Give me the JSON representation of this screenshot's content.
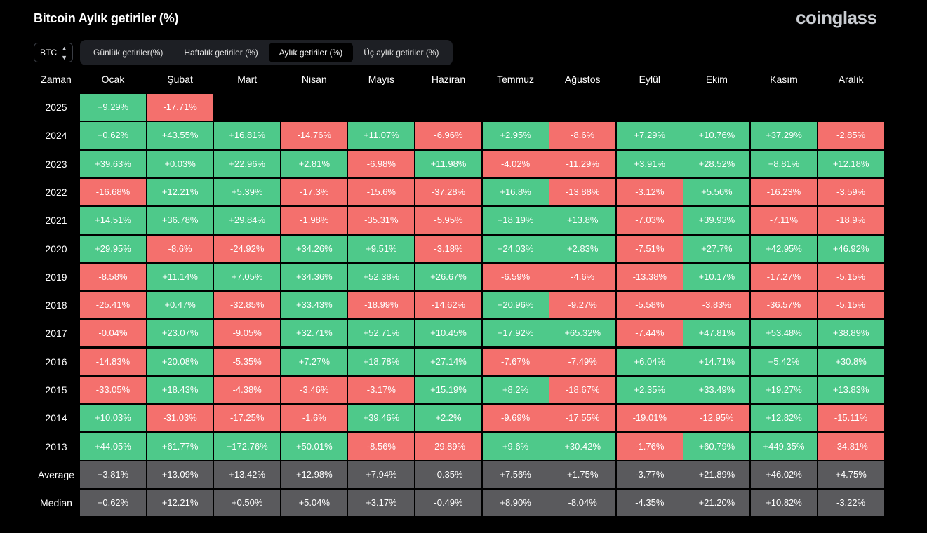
{
  "header": {
    "title": "Bitcoin Aylık getiriler (%)",
    "logo": "coinglass"
  },
  "coin_select": {
    "value": "BTC",
    "icon": "up-down-chevron-icon"
  },
  "tabs": [
    {
      "label": "Günlük getiriler(%)",
      "active": false
    },
    {
      "label": "Haftalık getiriler (%)",
      "active": false
    },
    {
      "label": "Aylık getiriler (%)",
      "active": true
    },
    {
      "label": "Üç aylık getiriler (%)",
      "active": false
    }
  ],
  "table": {
    "corner_label": "Zaman",
    "months": [
      "Ocak",
      "Şubat",
      "Mart",
      "Nisan",
      "Mayıs",
      "Haziran",
      "Temmuz",
      "Ağustos",
      "Eylül",
      "Ekim",
      "Kasım",
      "Aralık"
    ],
    "rows": [
      {
        "label": "2025",
        "values": [
          "+9.29%",
          "-17.71%"
        ]
      },
      {
        "label": "2024",
        "values": [
          "+0.62%",
          "+43.55%",
          "+16.81%",
          "-14.76%",
          "+11.07%",
          "-6.96%",
          "+2.95%",
          "-8.6%",
          "+7.29%",
          "+10.76%",
          "+37.29%",
          "-2.85%"
        ]
      },
      {
        "label": "2023",
        "values": [
          "+39.63%",
          "+0.03%",
          "+22.96%",
          "+2.81%",
          "-6.98%",
          "+11.98%",
          "-4.02%",
          "-11.29%",
          "+3.91%",
          "+28.52%",
          "+8.81%",
          "+12.18%"
        ]
      },
      {
        "label": "2022",
        "values": [
          "-16.68%",
          "+12.21%",
          "+5.39%",
          "-17.3%",
          "-15.6%",
          "-37.28%",
          "+16.8%",
          "-13.88%",
          "-3.12%",
          "+5.56%",
          "-16.23%",
          "-3.59%"
        ]
      },
      {
        "label": "2021",
        "values": [
          "+14.51%",
          "+36.78%",
          "+29.84%",
          "-1.98%",
          "-35.31%",
          "-5.95%",
          "+18.19%",
          "+13.8%",
          "-7.03%",
          "+39.93%",
          "-7.11%",
          "-18.9%"
        ]
      },
      {
        "label": "2020",
        "values": [
          "+29.95%",
          "-8.6%",
          "-24.92%",
          "+34.26%",
          "+9.51%",
          "-3.18%",
          "+24.03%",
          "+2.83%",
          "-7.51%",
          "+27.7%",
          "+42.95%",
          "+46.92%"
        ]
      },
      {
        "label": "2019",
        "values": [
          "-8.58%",
          "+11.14%",
          "+7.05%",
          "+34.36%",
          "+52.38%",
          "+26.67%",
          "-6.59%",
          "-4.6%",
          "-13.38%",
          "+10.17%",
          "-17.27%",
          "-5.15%"
        ]
      },
      {
        "label": "2018",
        "values": [
          "-25.41%",
          "+0.47%",
          "-32.85%",
          "+33.43%",
          "-18.99%",
          "-14.62%",
          "+20.96%",
          "-9.27%",
          "-5.58%",
          "-3.83%",
          "-36.57%",
          "-5.15%"
        ]
      },
      {
        "label": "2017",
        "values": [
          "-0.04%",
          "+23.07%",
          "-9.05%",
          "+32.71%",
          "+52.71%",
          "+10.45%",
          "+17.92%",
          "+65.32%",
          "-7.44%",
          "+47.81%",
          "+53.48%",
          "+38.89%"
        ]
      },
      {
        "label": "2016",
        "values": [
          "-14.83%",
          "+20.08%",
          "-5.35%",
          "+7.27%",
          "+18.78%",
          "+27.14%",
          "-7.67%",
          "-7.49%",
          "+6.04%",
          "+14.71%",
          "+5.42%",
          "+30.8%"
        ]
      },
      {
        "label": "2015",
        "values": [
          "-33.05%",
          "+18.43%",
          "-4.38%",
          "-3.46%",
          "-3.17%",
          "+15.19%",
          "+8.2%",
          "-18.67%",
          "+2.35%",
          "+33.49%",
          "+19.27%",
          "+13.83%"
        ]
      },
      {
        "label": "2014",
        "values": [
          "+10.03%",
          "-31.03%",
          "-17.25%",
          "-1.6%",
          "+39.46%",
          "+2.2%",
          "-9.69%",
          "-17.55%",
          "-19.01%",
          "-12.95%",
          "+12.82%",
          "-15.11%"
        ]
      },
      {
        "label": "2013",
        "values": [
          "+44.05%",
          "+61.77%",
          "+172.76%",
          "+50.01%",
          "-8.56%",
          "-29.89%",
          "+9.6%",
          "+30.42%",
          "-1.76%",
          "+60.79%",
          "+449.35%",
          "-34.81%"
        ]
      }
    ],
    "stats": [
      {
        "label": "Average",
        "values": [
          "+3.81%",
          "+13.09%",
          "+13.42%",
          "+12.98%",
          "+7.94%",
          "-0.35%",
          "+7.56%",
          "+1.75%",
          "-3.77%",
          "+21.89%",
          "+46.02%",
          "+4.75%"
        ]
      },
      {
        "label": "Median",
        "values": [
          "+0.62%",
          "+12.21%",
          "+0.50%",
          "+5.04%",
          "+3.17%",
          "-0.49%",
          "+8.90%",
          "-8.04%",
          "-4.35%",
          "+21.20%",
          "+10.82%",
          "-3.22%"
        ]
      }
    ]
  },
  "colors": {
    "positive": "#4ec98a",
    "negative": "#f4706d",
    "stat": "#5a5a5d",
    "background": "#000000"
  }
}
